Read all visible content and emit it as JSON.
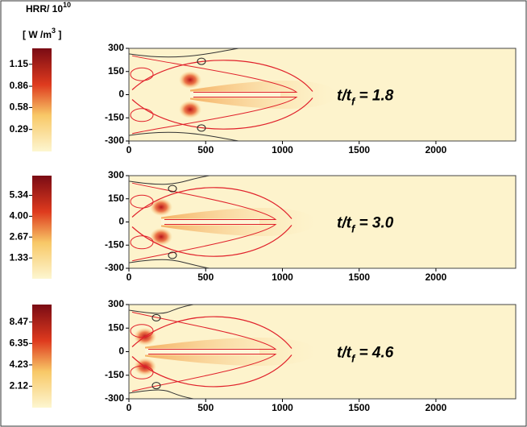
{
  "chart_data": [
    {
      "type": "heatmap",
      "colorbar_title": {
        "text": "HRR/ 10",
        "sup": "10"
      },
      "colorbar_units": {
        "text": "[ W /m",
        "sup": "3",
        "tail": " ]"
      },
      "clim": [
        0,
        1.36
      ],
      "cticks": [
        0.29,
        0.58,
        0.86,
        1.15
      ],
      "xlim": [
        0,
        2520
      ],
      "xticks": [
        0,
        500,
        1000,
        1500,
        2000
      ],
      "ylim": [
        -300,
        300
      ],
      "yticks": [
        -300,
        -150,
        0,
        150,
        300
      ],
      "annotation": {
        "main": "t/t",
        "sub": "f",
        "rest": " = 1.8"
      }
    },
    {
      "type": "heatmap",
      "clim": [
        0,
        6.6
      ],
      "cticks": [
        1.33,
        2.67,
        {
          "value": 4,
          "label": "4.00"
        },
        5.34
      ],
      "xlim": [
        0,
        2520
      ],
      "xticks": [
        0,
        500,
        1000,
        1500,
        2000
      ],
      "ylim": [
        -300,
        300
      ],
      "yticks": [
        -300,
        -150,
        0,
        150,
        300
      ],
      "annotation": {
        "main": "t/t",
        "sub": "f",
        "rest": " = 3.0"
      }
    },
    {
      "type": "heatmap",
      "clim": [
        0,
        10.2
      ],
      "cticks": [
        2.12,
        4.23,
        6.35,
        8.47
      ],
      "xlim": [
        0,
        2520
      ],
      "xticks": [
        0,
        500,
        1000,
        1500,
        2000
      ],
      "ylim": [
        -300,
        300
      ],
      "yticks": [
        -300,
        -150,
        0,
        150,
        300
      ],
      "annotation": {
        "main": "t/t",
        "sub": "f",
        "rest": " = 4.6"
      }
    }
  ]
}
